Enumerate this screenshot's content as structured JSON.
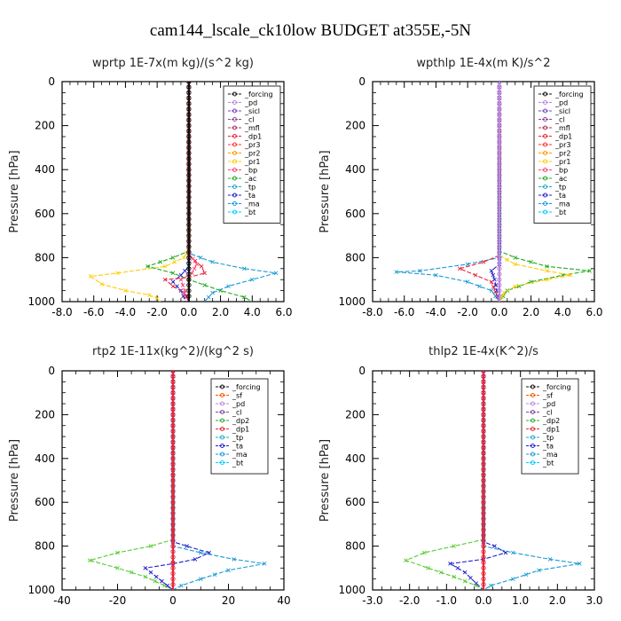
{
  "figure_title": "cam144_lscale_ck10low  BUDGET at355E,-5N",
  "chart_data": [
    {
      "type": "line",
      "title": "wprtp   1E-7x(m kg)/(s^2 kg)",
      "ylabel": "Pressure [hPa]",
      "xlim": [
        -8,
        6
      ],
      "ylim": [
        1000,
        0
      ],
      "xticks": [
        "-8.0",
        "-6.0",
        "-4.0",
        "-2.0",
        "0.0",
        "2.0",
        "4.0",
        "6.0"
      ],
      "yticks": [
        "0",
        "200",
        "400",
        "600",
        "800",
        "1000"
      ],
      "legend": "top-right",
      "legend_entries": [
        "_forcing",
        "_pd",
        "_sicl",
        "_cl",
        "_mfl",
        "_dp1",
        "_pr3",
        "_pr2",
        "_pr1",
        "_bp",
        "_ac",
        "_tp",
        "_ta",
        "_ma",
        "_bt"
      ],
      "series": [
        {
          "name": "_pr1",
          "color": "#ffcc00",
          "points": [
            [
              0,
              0
            ],
            [
              0,
              760
            ],
            [
              -0.3,
              800
            ],
            [
              -1.5,
              840
            ],
            [
              -4.5,
              870
            ],
            [
              -6.2,
              885
            ],
            [
              -5.5,
              920
            ],
            [
              -4,
              950
            ],
            [
              -2.5,
              970
            ],
            [
              -2,
              985
            ],
            [
              -1.8,
              1000
            ]
          ]
        },
        {
          "name": "_ac",
          "color": "#22aa22",
          "points": [
            [
              0,
              0
            ],
            [
              0,
              770
            ],
            [
              -1,
              800
            ],
            [
              -2.6,
              840
            ],
            [
              -1,
              870
            ],
            [
              0,
              900
            ],
            [
              2,
              950
            ],
            [
              3.5,
              980
            ],
            [
              4,
              1000
            ]
          ]
        },
        {
          "name": "_ma",
          "color": "#1a9ad6",
          "points": [
            [
              0,
              0
            ],
            [
              0,
              780
            ],
            [
              1.5,
              820
            ],
            [
              3.5,
              850
            ],
            [
              5.5,
              870
            ],
            [
              4,
              900
            ],
            [
              2.5,
              930
            ],
            [
              1.5,
              960
            ],
            [
              1,
              1000
            ]
          ]
        },
        {
          "name": "_ta",
          "color": "#2222cc",
          "points": [
            [
              0,
              0
            ],
            [
              0,
              840
            ],
            [
              -0.5,
              880
            ],
            [
              -1,
              910
            ],
            [
              -0.5,
              950
            ],
            [
              -0.2,
              1000
            ]
          ]
        },
        {
          "name": "_dp1",
          "color": "#e8283c",
          "points": [
            [
              0,
              0
            ],
            [
              0,
              790
            ],
            [
              0.8,
              840
            ],
            [
              1,
              870
            ],
            [
              0,
              890
            ],
            [
              -1.5,
              900
            ],
            [
              -1,
              930
            ],
            [
              -0.3,
              960
            ],
            [
              0,
              1000
            ]
          ]
        },
        {
          "name": "_bp",
          "color": "#ff4477",
          "points": [
            [
              0,
              0
            ],
            [
              0,
              780
            ],
            [
              0.5,
              830
            ],
            [
              0.2,
              870
            ],
            [
              -0.5,
              900
            ],
            [
              0,
              1000
            ]
          ]
        },
        {
          "name": "_forcing",
          "color": "#111111",
          "points": [
            [
              0,
              0
            ],
            [
              0,
              1000
            ]
          ]
        }
      ]
    },
    {
      "type": "line",
      "title": "wpthlp   1E-4x(m K)/s^2",
      "ylabel": "Pressure [hPa]",
      "xlim": [
        -8,
        6
      ],
      "ylim": [
        1000,
        0
      ],
      "xticks": [
        "-8.0",
        "-6.0",
        "-4.0",
        "-2.0",
        "0.0",
        "2.0",
        "4.0",
        "6.0"
      ],
      "yticks": [
        "0",
        "200",
        "400",
        "600",
        "800",
        "1000"
      ],
      "legend": "top-right",
      "legend_entries": [
        "_forcing",
        "_pd",
        "_sicl",
        "_cl",
        "_mfl",
        "_dp1",
        "_pr3",
        "_pr2",
        "_pr1",
        "_bp",
        "_ac",
        "_tp",
        "_ta",
        "_ma",
        "_bt"
      ],
      "series": [
        {
          "name": "_ac",
          "color": "#22aa22",
          "points": [
            [
              0,
              0
            ],
            [
              0,
              770
            ],
            [
              1,
              800
            ],
            [
              3,
              840
            ],
            [
              5.7,
              860
            ],
            [
              4,
              880
            ],
            [
              2,
              910
            ],
            [
              0.5,
              950
            ],
            [
              0,
              1000
            ]
          ]
        },
        {
          "name": "_pr1",
          "color": "#ffcc00",
          "points": [
            [
              0,
              0
            ],
            [
              0,
              790
            ],
            [
              1,
              830
            ],
            [
              3,
              860
            ],
            [
              4.5,
              880
            ],
            [
              3,
              900
            ],
            [
              1,
              930
            ],
            [
              0.3,
              960
            ],
            [
              0,
              1000
            ]
          ]
        },
        {
          "name": "_ma",
          "color": "#1a9ad6",
          "points": [
            [
              0,
              0
            ],
            [
              0,
              800
            ],
            [
              -2,
              830
            ],
            [
              -5,
              860
            ],
            [
              -6.5,
              865
            ],
            [
              -4,
              880
            ],
            [
              -2,
              910
            ],
            [
              -0.5,
              950
            ],
            [
              0,
              1000
            ]
          ]
        },
        {
          "name": "_dp1",
          "color": "#e8283c",
          "points": [
            [
              0,
              0
            ],
            [
              0,
              790
            ],
            [
              -1,
              820
            ],
            [
              -2.5,
              850
            ],
            [
              -1.5,
              880
            ],
            [
              -0.5,
              910
            ],
            [
              0,
              1000
            ]
          ]
        },
        {
          "name": "_ta",
          "color": "#2222cc",
          "points": [
            [
              0,
              0
            ],
            [
              0,
              830
            ],
            [
              -0.5,
              860
            ],
            [
              -0.3,
              900
            ],
            [
              0,
              1000
            ]
          ]
        },
        {
          "name": "_forcing",
          "color": "#bb88dd",
          "points": [
            [
              0,
              0
            ],
            [
              0,
              1000
            ]
          ]
        }
      ]
    },
    {
      "type": "line",
      "title": "rtp2   1E-11x(kg^2)/(kg^2 s)",
      "ylabel": "Pressure [hPa]",
      "xlim": [
        -40,
        40
      ],
      "ylim": [
        1000,
        0
      ],
      "xticks": [
        "-40",
        "-20",
        "0",
        "20",
        "40"
      ],
      "yticks": [
        "0",
        "200",
        "400",
        "600",
        "800",
        "1000"
      ],
      "legend": "top-right",
      "legend_entries": [
        "_forcing",
        "_sf",
        "_pd",
        "_cl",
        "_dp2",
        "_dp1",
        "_tp",
        "_ta",
        "_ma",
        "_bt"
      ],
      "series": [
        {
          "name": "_dp1",
          "color": "#55cc33",
          "points": [
            [
              0,
              0
            ],
            [
              0,
              770
            ],
            [
              -8,
              800
            ],
            [
              -20,
              830
            ],
            [
              -30,
              865
            ],
            [
              -20,
              900
            ],
            [
              -10,
              940
            ],
            [
              -3,
              980
            ],
            [
              0,
              1000
            ]
          ]
        },
        {
          "name": "_ma",
          "color": "#1a9ad6",
          "points": [
            [
              0,
              0
            ],
            [
              0,
              800
            ],
            [
              10,
              830
            ],
            [
              22,
              860
            ],
            [
              33,
              880
            ],
            [
              20,
              910
            ],
            [
              10,
              950
            ],
            [
              3,
              980
            ],
            [
              0,
              1000
            ]
          ]
        },
        {
          "name": "_ta",
          "color": "#2222cc",
          "points": [
            [
              0,
              0
            ],
            [
              0,
              780
            ],
            [
              5,
              800
            ],
            [
              13,
              830
            ],
            [
              8,
              860
            ],
            [
              0,
              880
            ],
            [
              -10,
              900
            ],
            [
              -6,
              940
            ],
            [
              -2,
              980
            ],
            [
              0,
              1000
            ]
          ]
        },
        {
          "name": "_forcing",
          "color": "#e8283c",
          "points": [
            [
              0,
              0
            ],
            [
              0,
              1000
            ]
          ]
        }
      ]
    },
    {
      "type": "line",
      "title": "thlp2   1E-4x(K^2)/s",
      "ylabel": "Pressure [hPa]",
      "xlim": [
        -3,
        3
      ],
      "ylim": [
        1000,
        0
      ],
      "xticks": [
        "-3.0",
        "-2.0",
        "-1.0",
        "0.0",
        "1.0",
        "2.0",
        "3.0"
      ],
      "yticks": [
        "0",
        "200",
        "400",
        "600",
        "800",
        "1000"
      ],
      "legend": "top-right",
      "legend_entries": [
        "_forcing",
        "_sf",
        "_pd",
        "_cl",
        "_dp2",
        "_dp1",
        "_tp",
        "_ta",
        "_ma",
        "_bt"
      ],
      "series": [
        {
          "name": "_dp1",
          "color": "#55cc33",
          "points": [
            [
              0,
              0
            ],
            [
              0,
              770
            ],
            [
              -0.8,
              800
            ],
            [
              -1.6,
              830
            ],
            [
              -2.1,
              865
            ],
            [
              -1.5,
              900
            ],
            [
              -0.8,
              940
            ],
            [
              -0.2,
              980
            ],
            [
              0,
              1000
            ]
          ]
        },
        {
          "name": "_ma",
          "color": "#1a9ad6",
          "points": [
            [
              0,
              0
            ],
            [
              0,
              800
            ],
            [
              0.8,
              830
            ],
            [
              1.8,
              860
            ],
            [
              2.6,
              880
            ],
            [
              1.5,
              910
            ],
            [
              0.8,
              950
            ],
            [
              0.2,
              980
            ],
            [
              0,
              1000
            ]
          ]
        },
        {
          "name": "_ta",
          "color": "#2222cc",
          "points": [
            [
              0,
              0
            ],
            [
              0,
              780
            ],
            [
              0.3,
              800
            ],
            [
              0.6,
              830
            ],
            [
              0,
              860
            ],
            [
              -0.9,
              880
            ],
            [
              -0.5,
              920
            ],
            [
              -0.2,
              970
            ],
            [
              0,
              1000
            ]
          ]
        },
        {
          "name": "_forcing",
          "color": "#e8283c",
          "points": [
            [
              0,
              0
            ],
            [
              0,
              1000
            ]
          ]
        }
      ]
    }
  ],
  "colors": {
    "_forcing": "#111111",
    "_pd": "#bb88dd",
    "_sicl": "#7744bb",
    "_cl": "#884499",
    "_mfl": "#aa3366",
    "_dp1": "#e8283c",
    "_pr3": "#ff3333",
    "_pr2": "#ff9900",
    "_pr1": "#ffcc00",
    "_bp": "#ff4477",
    "_ac": "#22aa22",
    "_tp": "#22aacc",
    "_ta": "#2222cc",
    "_ma": "#1a9ad6",
    "_bt": "#00ccff",
    "_sf": "#ff5500",
    "_dp2": "#33aa33"
  }
}
